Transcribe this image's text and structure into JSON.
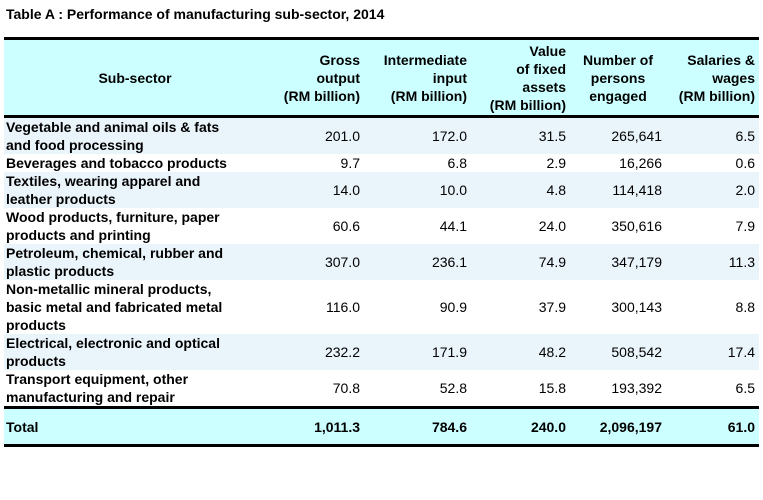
{
  "title": "Table A : Performance of manufacturing sub-sector, 2014",
  "header": {
    "sector": "Sub-sector",
    "columns": [
      {
        "lines": [
          "Gross",
          "output",
          "(RM billion)"
        ]
      },
      {
        "lines": [
          "Intermediate",
          "input",
          "(RM billion)"
        ]
      },
      {
        "lines": [
          "Value",
          "of fixed",
          "assets",
          "(RM billion)"
        ]
      },
      {
        "lines": [
          "Number of",
          "persons",
          "engaged"
        ]
      },
      {
        "lines": [
          "Salaries &",
          "wages",
          "(RM billion)"
        ]
      }
    ]
  },
  "rows": [
    {
      "sector": [
        "Vegetable and animal oils & fats",
        "and food processing"
      ],
      "gross_output": "201.0",
      "intermediate_input": "172.0",
      "fixed_assets": "31.5",
      "persons_engaged": "265,641",
      "salaries_wages": "6.5"
    },
    {
      "sector": [
        "Beverages and tobacco products"
      ],
      "gross_output": "9.7",
      "intermediate_input": "6.8",
      "fixed_assets": "2.9",
      "persons_engaged": "16,266",
      "salaries_wages": "0.6"
    },
    {
      "sector": [
        "Textiles, wearing apparel and",
        "leather products"
      ],
      "gross_output": "14.0",
      "intermediate_input": "10.0",
      "fixed_assets": "4.8",
      "persons_engaged": "114,418",
      "salaries_wages": "2.0"
    },
    {
      "sector": [
        "Wood products, furniture, paper",
        "products and printing"
      ],
      "gross_output": "60.6",
      "intermediate_input": "44.1",
      "fixed_assets": "24.0",
      "persons_engaged": "350,616",
      "salaries_wages": "7.9"
    },
    {
      "sector": [
        "Petroleum, chemical, rubber and",
        "plastic products"
      ],
      "gross_output": "307.0",
      "intermediate_input": "236.1",
      "fixed_assets": "74.9",
      "persons_engaged": "347,179",
      "salaries_wages": "11.3"
    },
    {
      "sector": [
        "Non-metallic mineral products,",
        "basic metal and fabricated metal",
        "products"
      ],
      "gross_output": "116.0",
      "intermediate_input": "90.9",
      "fixed_assets": "37.9",
      "persons_engaged": "300,143",
      "salaries_wages": "8.8"
    },
    {
      "sector": [
        "Electrical, electronic and optical",
        "products"
      ],
      "gross_output": "232.2",
      "intermediate_input": "171.9",
      "fixed_assets": "48.2",
      "persons_engaged": "508,542",
      "salaries_wages": "17.4"
    },
    {
      "sector": [
        "Transport equipment, other",
        "manufacturing and repair"
      ],
      "gross_output": "70.8",
      "intermediate_input": "52.8",
      "fixed_assets": "15.8",
      "persons_engaged": "193,392",
      "salaries_wages": "6.5"
    }
  ],
  "total": {
    "label": "Total",
    "gross_output": "1,011.3",
    "intermediate_input": "784.6",
    "fixed_assets": "240.0",
    "persons_engaged": "2,096,197",
    "salaries_wages": "61.0"
  }
}
